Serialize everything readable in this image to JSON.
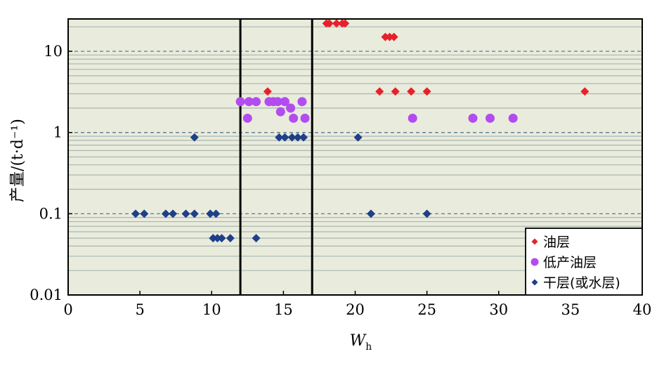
{
  "chart_data": {
    "type": "scatter",
    "title": "",
    "xlabel": "W",
    "xlabel_subscript": "h",
    "ylabel": "产量/(t·d⁻¹)",
    "xlim": [
      0,
      40
    ],
    "ylim": [
      0.01,
      25
    ],
    "y_scale": "log",
    "x_ticks": [
      0,
      5,
      10,
      15,
      20,
      25,
      30,
      35,
      40
    ],
    "x_tick_labels": [
      "0",
      "5",
      "10",
      "15",
      "20",
      "25",
      "30",
      "35",
      "40"
    ],
    "y_ticks": [
      0.01,
      0.1,
      1,
      10
    ],
    "y_tick_labels": [
      "0.01",
      "0.1",
      "1",
      "10"
    ],
    "vertical_lines": [
      12,
      17
    ],
    "legend_position": "bottom-right",
    "background_color": "#e9ebdc",
    "series": [
      {
        "name": "油层",
        "marker": "diamond",
        "color": "#e8202a",
        "points": [
          [
            18,
            22
          ],
          [
            18.2,
            22
          ],
          [
            18.7,
            22
          ],
          [
            19.1,
            22
          ],
          [
            19.3,
            22
          ],
          [
            22.1,
            15
          ],
          [
            22.4,
            15
          ],
          [
            22.7,
            15
          ],
          [
            13.9,
            3.2
          ],
          [
            21.7,
            3.2
          ],
          [
            22.8,
            3.2
          ],
          [
            23.9,
            3.2
          ],
          [
            25,
            3.2
          ],
          [
            36,
            3.2
          ]
        ]
      },
      {
        "name": "低产油层",
        "marker": "circle",
        "color": "#b24cf0",
        "points": [
          [
            12,
            2.4
          ],
          [
            12.6,
            2.4
          ],
          [
            13.1,
            2.4
          ],
          [
            14,
            2.4
          ],
          [
            14.3,
            2.4
          ],
          [
            14.6,
            2.4
          ],
          [
            15.1,
            2.4
          ],
          [
            16.3,
            2.4
          ],
          [
            14.8,
            1.8
          ],
          [
            15.5,
            2.0
          ],
          [
            12.5,
            1.5
          ],
          [
            15.7,
            1.5
          ],
          [
            16.5,
            1.5
          ],
          [
            24,
            1.5
          ],
          [
            28.2,
            1.5
          ],
          [
            29.4,
            1.5
          ],
          [
            31,
            1.5
          ]
        ]
      },
      {
        "name": "干层(或水层)",
        "marker": "diamond",
        "color": "#1f3f88",
        "points": [
          [
            8.8,
            0.87
          ],
          [
            14.7,
            0.87
          ],
          [
            15.1,
            0.87
          ],
          [
            15.6,
            0.87
          ],
          [
            16,
            0.87
          ],
          [
            16.4,
            0.87
          ],
          [
            20.2,
            0.87
          ],
          [
            4.7,
            0.1
          ],
          [
            5.3,
            0.1
          ],
          [
            6.8,
            0.1
          ],
          [
            7.3,
            0.1
          ],
          [
            8.2,
            0.1
          ],
          [
            8.8,
            0.1
          ],
          [
            9.9,
            0.1
          ],
          [
            10.3,
            0.1
          ],
          [
            21.1,
            0.1
          ],
          [
            25,
            0.1
          ],
          [
            10.1,
            0.05
          ],
          [
            10.4,
            0.05
          ],
          [
            10.7,
            0.05
          ],
          [
            11.3,
            0.05
          ],
          [
            13.1,
            0.05
          ]
        ]
      }
    ]
  }
}
